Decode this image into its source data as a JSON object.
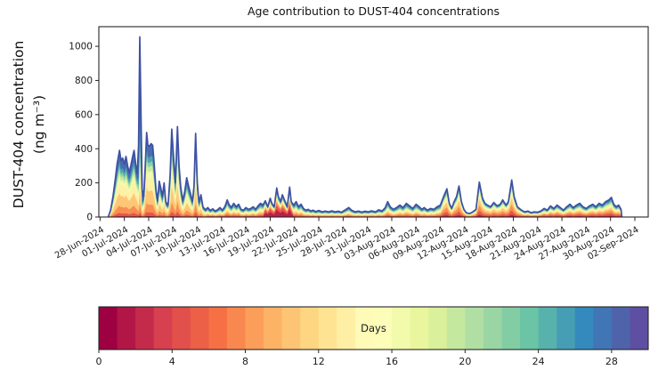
{
  "chart_data": {
    "type": "stacked-area",
    "title": "Age contribution to DUST-404 concentrations",
    "ylabel_line1": "DUST-404 concentration",
    "ylabel_line2": "(ng m⁻³)",
    "xlabel": "",
    "ylim": [
      0,
      1115
    ],
    "xlim_days": [
      -0.15,
      67.65
    ],
    "grid": false,
    "day0_date": "28-Jun-2024",
    "x_tick_step_days": 3,
    "x_tick_dates": [
      "28-Jun-2024",
      "01-Jul-2024",
      "04-Jul-2024",
      "07-Jul-2024",
      "10-Jul-2024",
      "13-Jul-2024",
      "16-Jul-2024",
      "19-Jul-2024",
      "22-Jul-2024",
      "25-Jul-2024",
      "28-Jul-2024",
      "31-Jul-2024",
      "03-Aug-2024",
      "06-Aug-2024",
      "09-Aug-2024",
      "12-Aug-2024",
      "15-Aug-2024",
      "18-Aug-2024",
      "21-Aug-2024",
      "24-Aug-2024",
      "27-Aug-2024",
      "30-Aug-2024",
      "02-Sep-2024"
    ],
    "y_ticks": [
      0,
      200,
      400,
      600,
      800,
      1000
    ],
    "total_series": {
      "units": "ng m⁻³",
      "x_units": "days since 28-Jun-2024",
      "points": [
        [
          1.0,
          0
        ],
        [
          1.3,
          40
        ],
        [
          1.6,
          120
        ],
        [
          1.9,
          230
        ],
        [
          2.1,
          310
        ],
        [
          2.4,
          390
        ],
        [
          2.6,
          330
        ],
        [
          2.8,
          345
        ],
        [
          3.0,
          310
        ],
        [
          3.2,
          355
        ],
        [
          3.4,
          300
        ],
        [
          3.6,
          260
        ],
        [
          3.8,
          300
        ],
        [
          4.0,
          350
        ],
        [
          4.2,
          390
        ],
        [
          4.4,
          310
        ],
        [
          4.6,
          255
        ],
        [
          4.75,
          420
        ],
        [
          4.9,
          1055
        ],
        [
          5.05,
          620
        ],
        [
          5.2,
          160
        ],
        [
          5.4,
          120
        ],
        [
          5.6,
          320
        ],
        [
          5.75,
          495
        ],
        [
          5.9,
          420
        ],
        [
          6.1,
          415
        ],
        [
          6.3,
          430
        ],
        [
          6.5,
          420
        ],
        [
          6.7,
          300
        ],
        [
          6.9,
          160
        ],
        [
          7.1,
          95
        ],
        [
          7.3,
          210
        ],
        [
          7.5,
          170
        ],
        [
          7.7,
          120
        ],
        [
          7.9,
          200
        ],
        [
          8.1,
          90
        ],
        [
          8.4,
          70
        ],
        [
          8.65,
          250
        ],
        [
          8.85,
          515
        ],
        [
          9.1,
          330
        ],
        [
          9.3,
          200
        ],
        [
          9.55,
          530
        ],
        [
          9.75,
          300
        ],
        [
          9.95,
          180
        ],
        [
          10.2,
          95
        ],
        [
          10.45,
          150
        ],
        [
          10.7,
          230
        ],
        [
          10.9,
          185
        ],
        [
          11.15,
          140
        ],
        [
          11.4,
          90
        ],
        [
          11.6,
          180
        ],
        [
          11.8,
          490
        ],
        [
          12.0,
          200
        ],
        [
          12.2,
          85
        ],
        [
          12.45,
          130
        ],
        [
          12.7,
          60
        ],
        [
          13.0,
          42
        ],
        [
          13.3,
          55
        ],
        [
          13.6,
          38
        ],
        [
          13.9,
          48
        ],
        [
          14.2,
          35
        ],
        [
          14.5,
          42
        ],
        [
          14.8,
          55
        ],
        [
          15.1,
          40
        ],
        [
          15.4,
          60
        ],
        [
          15.7,
          100
        ],
        [
          15.9,
          75
        ],
        [
          16.2,
          55
        ],
        [
          16.5,
          80
        ],
        [
          16.8,
          60
        ],
        [
          17.1,
          75
        ],
        [
          17.4,
          45
        ],
        [
          17.7,
          40
        ],
        [
          18.0,
          55
        ],
        [
          18.3,
          45
        ],
        [
          18.6,
          50
        ],
        [
          18.9,
          60
        ],
        [
          19.2,
          45
        ],
        [
          19.5,
          65
        ],
        [
          19.8,
          80
        ],
        [
          20.1,
          70
        ],
        [
          20.4,
          95
        ],
        [
          20.7,
          60
        ],
        [
          21.0,
          110
        ],
        [
          21.2,
          80
        ],
        [
          21.5,
          60
        ],
        [
          21.8,
          170
        ],
        [
          22.0,
          120
        ],
        [
          22.3,
          90
        ],
        [
          22.5,
          130
        ],
        [
          22.8,
          95
        ],
        [
          23.1,
          60
        ],
        [
          23.4,
          175
        ],
        [
          23.6,
          90
        ],
        [
          23.9,
          70
        ],
        [
          24.2,
          90
        ],
        [
          24.5,
          60
        ],
        [
          24.8,
          75
        ],
        [
          25.1,
          50
        ],
        [
          25.4,
          40
        ],
        [
          25.7,
          45
        ],
        [
          26.0,
          35
        ],
        [
          26.3,
          40
        ],
        [
          26.6,
          32
        ],
        [
          27.0,
          38
        ],
        [
          27.4,
          30
        ],
        [
          27.8,
          35
        ],
        [
          28.2,
          30
        ],
        [
          28.6,
          36
        ],
        [
          29.0,
          30
        ],
        [
          29.4,
          34
        ],
        [
          29.8,
          28
        ],
        [
          30.2,
          40
        ],
        [
          30.7,
          55
        ],
        [
          31.1,
          38
        ],
        [
          31.5,
          30
        ],
        [
          31.9,
          35
        ],
        [
          32.3,
          28
        ],
        [
          32.7,
          34
        ],
        [
          33.1,
          30
        ],
        [
          33.5,
          36
        ],
        [
          34.0,
          30
        ],
        [
          34.4,
          42
        ],
        [
          34.8,
          35
        ],
        [
          35.2,
          55
        ],
        [
          35.5,
          90
        ],
        [
          35.8,
          60
        ],
        [
          36.2,
          45
        ],
        [
          36.6,
          55
        ],
        [
          37.0,
          70
        ],
        [
          37.4,
          55
        ],
        [
          37.8,
          80
        ],
        [
          38.2,
          65
        ],
        [
          38.6,
          50
        ],
        [
          39.0,
          75
        ],
        [
          39.4,
          60
        ],
        [
          39.7,
          45
        ],
        [
          40.0,
          55
        ],
        [
          40.4,
          40
        ],
        [
          40.8,
          50
        ],
        [
          41.2,
          45
        ],
        [
          41.6,
          60
        ],
        [
          42.0,
          70
        ],
        [
          42.4,
          120
        ],
        [
          42.8,
          165
        ],
        [
          43.1,
          80
        ],
        [
          43.4,
          50
        ],
        [
          43.7,
          90
        ],
        [
          44.0,
          120
        ],
        [
          44.3,
          182
        ],
        [
          44.6,
          90
        ],
        [
          44.9,
          45
        ],
        [
          45.2,
          25
        ],
        [
          45.6,
          20
        ],
        [
          46.0,
          30
        ],
        [
          46.4,
          45
        ],
        [
          46.8,
          205
        ],
        [
          47.2,
          110
        ],
        [
          47.5,
          80
        ],
        [
          47.8,
          70
        ],
        [
          48.2,
          60
        ],
        [
          48.6,
          85
        ],
        [
          49.0,
          65
        ],
        [
          49.4,
          75
        ],
        [
          49.7,
          100
        ],
        [
          50.1,
          70
        ],
        [
          50.4,
          90
        ],
        [
          50.8,
          217
        ],
        [
          51.1,
          120
        ],
        [
          51.5,
          60
        ],
        [
          52.0,
          40
        ],
        [
          52.4,
          30
        ],
        [
          52.8,
          35
        ],
        [
          53.2,
          25
        ],
        [
          53.6,
          30
        ],
        [
          54.0,
          28
        ],
        [
          54.4,
          35
        ],
        [
          54.8,
          50
        ],
        [
          55.2,
          40
        ],
        [
          55.6,
          65
        ],
        [
          56.0,
          50
        ],
        [
          56.4,
          70
        ],
        [
          56.8,
          55
        ],
        [
          57.2,
          40
        ],
        [
          57.6,
          60
        ],
        [
          58.0,
          75
        ],
        [
          58.4,
          55
        ],
        [
          58.8,
          70
        ],
        [
          59.2,
          80
        ],
        [
          59.6,
          60
        ],
        [
          60.0,
          50
        ],
        [
          60.4,
          65
        ],
        [
          60.8,
          75
        ],
        [
          61.2,
          60
        ],
        [
          61.6,
          80
        ],
        [
          62.0,
          70
        ],
        [
          62.4,
          90
        ],
        [
          62.8,
          100
        ],
        [
          63.1,
          115
        ],
        [
          63.4,
          75
        ],
        [
          63.7,
          60
        ],
        [
          64.0,
          70
        ],
        [
          64.3,
          45
        ],
        [
          64.4,
          0
        ]
      ]
    },
    "age_layers": {
      "n_layers": 10,
      "age_range_days": [
        0,
        30
      ],
      "age_bin_width_days": 3,
      "stack_order": "youngest at bottom, oldest at top",
      "profiles": {
        "early": [
          0.015,
          0.05,
          0.11,
          0.19,
          0.17,
          0.1,
          0.07,
          0.06,
          0.075,
          0.16
        ],
        "aged_spike": [
          0.01,
          0.02,
          0.05,
          0.09,
          0.1,
          0.07,
          0.05,
          0.06,
          0.1,
          0.45
        ],
        "mixed": [
          0.05,
          0.09,
          0.12,
          0.13,
          0.12,
          0.1,
          0.08,
          0.08,
          0.1,
          0.13
        ],
        "fresh_spikes": [
          0.28,
          0.18,
          0.1,
          0.08,
          0.07,
          0.06,
          0.05,
          0.05,
          0.06,
          0.07
        ],
        "aug_peaks": [
          0.07,
          0.12,
          0.16,
          0.18,
          0.14,
          0.09,
          0.06,
          0.05,
          0.06,
          0.07
        ],
        "late": [
          0.08,
          0.13,
          0.14,
          0.13,
          0.11,
          0.09,
          0.07,
          0.07,
          0.08,
          0.1
        ]
      },
      "segments": [
        {
          "until_day": 4.6,
          "profile": "early"
        },
        {
          "until_day": 5.35,
          "profile": "aged_spike"
        },
        {
          "until_day": 13.0,
          "profile": "early"
        },
        {
          "until_day": 20.3,
          "profile": "mixed"
        },
        {
          "until_day": 23.6,
          "profile": "fresh_spikes"
        },
        {
          "until_day": 42.0,
          "profile": "mixed"
        },
        {
          "until_day": 52.0,
          "profile": "aug_peaks"
        },
        {
          "until_day": 99.0,
          "profile": "late"
        }
      ]
    },
    "colorbar": {
      "label": "Days",
      "min": 0,
      "max": 30,
      "n_segments": 30,
      "ticks": [
        0,
        4,
        8,
        12,
        16,
        20,
        24,
        28
      ],
      "colormap": "Spectral",
      "anchors": [
        "#9e0142",
        "#d53e4f",
        "#f46d43",
        "#fdae61",
        "#fee08b",
        "#ffffbf",
        "#e6f598",
        "#abdda4",
        "#66c2a5",
        "#3288bd",
        "#5e4fa2"
      ]
    },
    "colors": {
      "envelope": "#3e51a3",
      "axis": "#262626",
      "text": "#1a1a1a",
      "background": "#ffffff"
    }
  }
}
